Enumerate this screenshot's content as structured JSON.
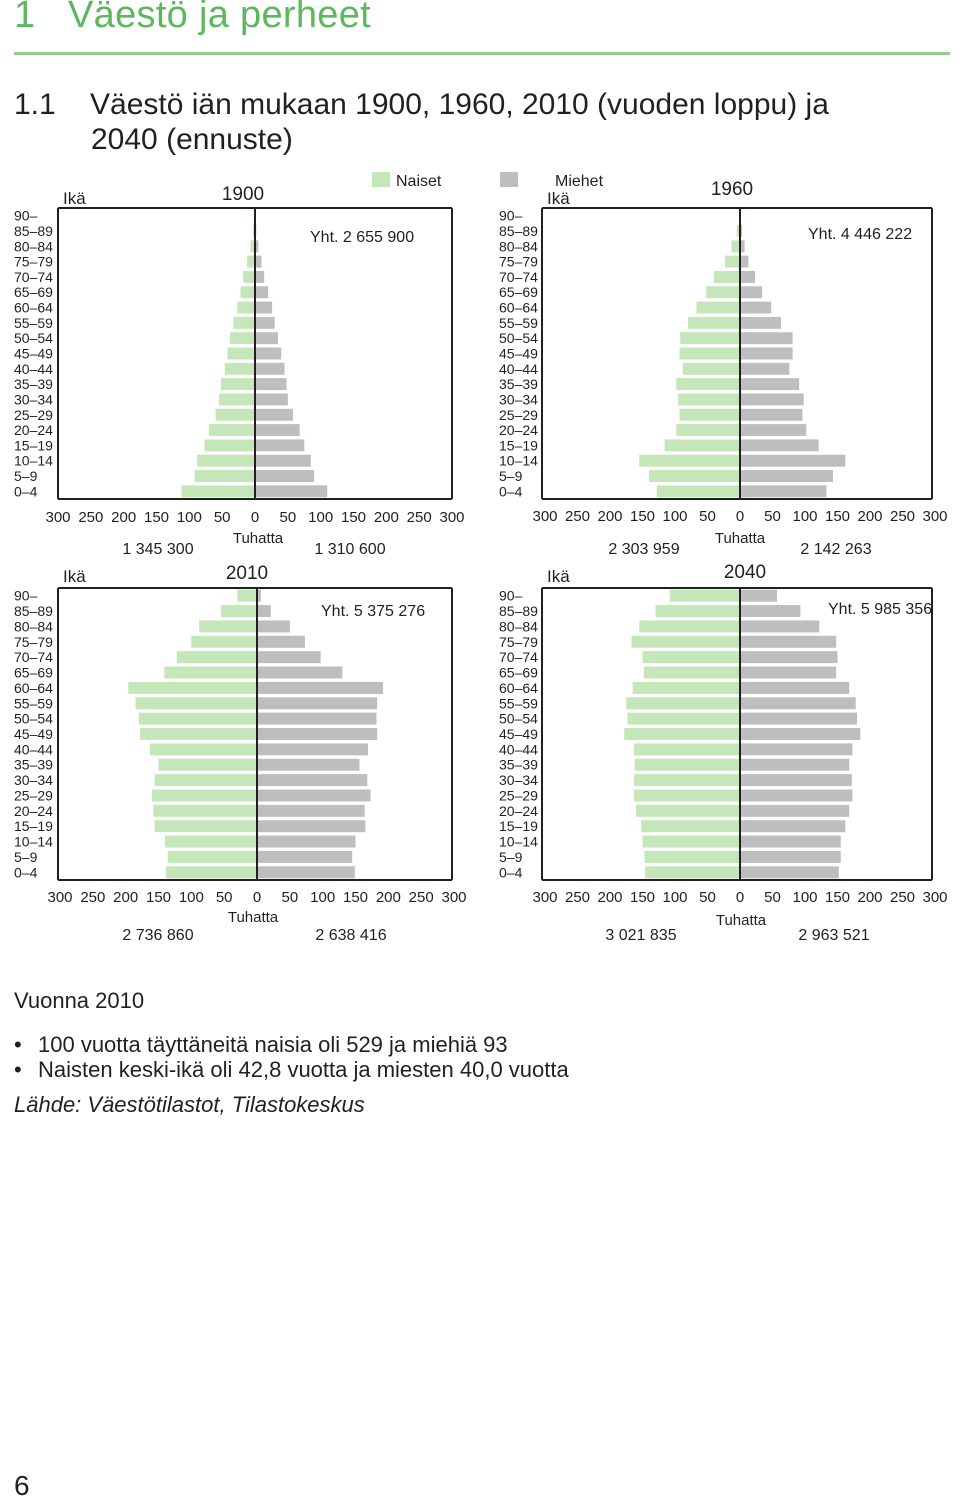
{
  "section": {
    "number": "1",
    "title": "Väestö ja perheet"
  },
  "figure": {
    "number": "1.1",
    "title_line1": "Väestö iän mukaan 1900, 1960, 2010 (vuoden loppu) ja",
    "title_line2": "2040 (ennuste)"
  },
  "colors": {
    "women": "#c5e6b8",
    "men": "#bebebe",
    "axis": "#231f20",
    "section_title": "#5cb85c"
  },
  "chart_data": [
    {
      "type": "bar",
      "title": "1900",
      "ylabel": "Ikä",
      "xlabel": "Tuhatta",
      "total_label": "Yht. 2 655 900",
      "left_total": "1 345 300",
      "right_total": "1 310 600",
      "legend": [
        {
          "name": "Naiset",
          "color": "#c5e6b8"
        }
      ],
      "categories": [
        "90–",
        "85–89",
        "80–84",
        "75–79",
        "70–74",
        "65–69",
        "60–64",
        "55–59",
        "50–54",
        "45–49",
        "40–44",
        "35–39",
        "30–34",
        "25–29",
        "20–24",
        "15–19",
        "10–14",
        "5–9",
        "0–4"
      ],
      "x_ticks": [
        "300",
        "250",
        "200",
        "150",
        "100",
        "50",
        "0",
        "50",
        "100",
        "150",
        "200",
        "250",
        "300"
      ],
      "xlim": [
        -300,
        300
      ],
      "series": [
        {
          "name": "Naiset",
          "values": [
            0,
            3,
            7,
            12,
            18,
            22,
            27,
            33,
            38,
            42,
            46,
            52,
            55,
            60,
            70,
            77,
            88,
            92,
            112
          ]
        },
        {
          "name": "",
          "values": [
            0,
            2,
            5,
            10,
            14,
            20,
            26,
            30,
            35,
            40,
            45,
            48,
            50,
            58,
            68,
            75,
            85,
            90,
            110
          ]
        }
      ]
    },
    {
      "type": "bar",
      "title": "1960",
      "ylabel": "Ikä",
      "xlabel": "Tuhatta",
      "total_label": "Yht. 4 446 222",
      "left_total": "2 303 959",
      "right_total": "2 142 263",
      "legend": [
        {
          "name": "Miehet",
          "color": "#bebebe"
        }
      ],
      "categories": [
        "90–",
        "85–89",
        "80–84",
        "75–79",
        "70–74",
        "65–69",
        "60–64",
        "55–59",
        "50–54",
        "45–49",
        "40–44",
        "35–39",
        "30–34",
        "25–29",
        "20–24",
        "15–19",
        "10–14",
        "5–9",
        "0–4"
      ],
      "x_ticks": [
        "300",
        "250",
        "200",
        "150",
        "100",
        "50",
        "0",
        "50",
        "100",
        "150",
        "200",
        "250",
        "300"
      ],
      "xlim": [
        -300,
        300
      ],
      "series": [
        {
          "name": "Naiset",
          "values": [
            1,
            5,
            13,
            23,
            40,
            52,
            67,
            80,
            92,
            93,
            88,
            98,
            95,
            93,
            98,
            116,
            155,
            140,
            128
          ]
        },
        {
          "name": "Miehet",
          "values": [
            0,
            3,
            7,
            13,
            23,
            34,
            48,
            63,
            81,
            81,
            76,
            91,
            98,
            96,
            102,
            121,
            162,
            143,
            133
          ]
        }
      ]
    },
    {
      "type": "bar",
      "title": "2010",
      "ylabel": "Ikä",
      "xlabel": "Tuhatta",
      "total_label": "Yht. 5 375 276",
      "left_total": "2 736 860",
      "right_total": "2 638 416",
      "categories": [
        "90–",
        "85–89",
        "80–84",
        "75–79",
        "70–74",
        "65–69",
        "60–64",
        "55–59",
        "50–54",
        "45–49",
        "40–44",
        "35–39",
        "30–34",
        "25–29",
        "20–24",
        "15–19",
        "10–14",
        "5–9",
        "0–4"
      ],
      "x_ticks": [
        "300",
        "250",
        "200",
        "150",
        "100",
        "50",
        "0",
        "50",
        "100",
        "150",
        "200",
        "250",
        "300"
      ],
      "xlim": [
        -300,
        300
      ],
      "series": [
        {
          "name": "Naiset",
          "values": [
            30,
            55,
            88,
            100,
            122,
            141,
            196,
            185,
            180,
            178,
            163,
            150,
            156,
            160,
            158,
            156,
            140,
            136,
            139
          ]
        },
        {
          "name": "Miehet",
          "values": [
            6,
            21,
            50,
            73,
            97,
            130,
            192,
            183,
            182,
            183,
            169,
            156,
            168,
            173,
            164,
            165,
            150,
            145,
            149
          ]
        }
      ]
    },
    {
      "type": "bar",
      "title": "2040",
      "ylabel": "Ikä",
      "xlabel": "Tuhatta",
      "total_label": "Yht. 5 985 356",
      "left_total": "3 021 835",
      "right_total": "2 963 521",
      "categories": [
        "90–",
        "85–89",
        "80–84",
        "75–79",
        "70–74",
        "65–69",
        "60–64",
        "55–59",
        "50–54",
        "45–49",
        "40–44",
        "35–39",
        "30–34",
        "25–29",
        "20–24",
        "15–19",
        "10–14",
        "5–9",
        "0–4"
      ],
      "x_ticks": [
        "300",
        "250",
        "200",
        "150",
        "100",
        "50",
        "0",
        "50",
        "100",
        "150",
        "200",
        "250",
        "300"
      ],
      "xlim": [
        -300,
        300
      ],
      "series": [
        {
          "name": "Naiset",
          "values": [
            108,
            130,
            155,
            167,
            150,
            148,
            165,
            175,
            173,
            178,
            163,
            162,
            163,
            163,
            160,
            152,
            150,
            147,
            146
          ]
        },
        {
          "name": "Miehet",
          "values": [
            57,
            93,
            122,
            148,
            150,
            148,
            168,
            178,
            180,
            185,
            173,
            168,
            172,
            173,
            168,
            162,
            155,
            155,
            152
          ]
        }
      ]
    }
  ],
  "notes": {
    "heading": "Vuonna 2010",
    "bullets": [
      "100 vuotta täyttäneitä naisia oli 529 ja miehiä 93",
      "Naisten keski-ikä oli 42,8 vuotta ja miesten 40,0 vuotta"
    ],
    "bullet_symbol": "•",
    "source": "Lähde: Väestötilastot, Tilastokeskus"
  },
  "page_number": "6"
}
